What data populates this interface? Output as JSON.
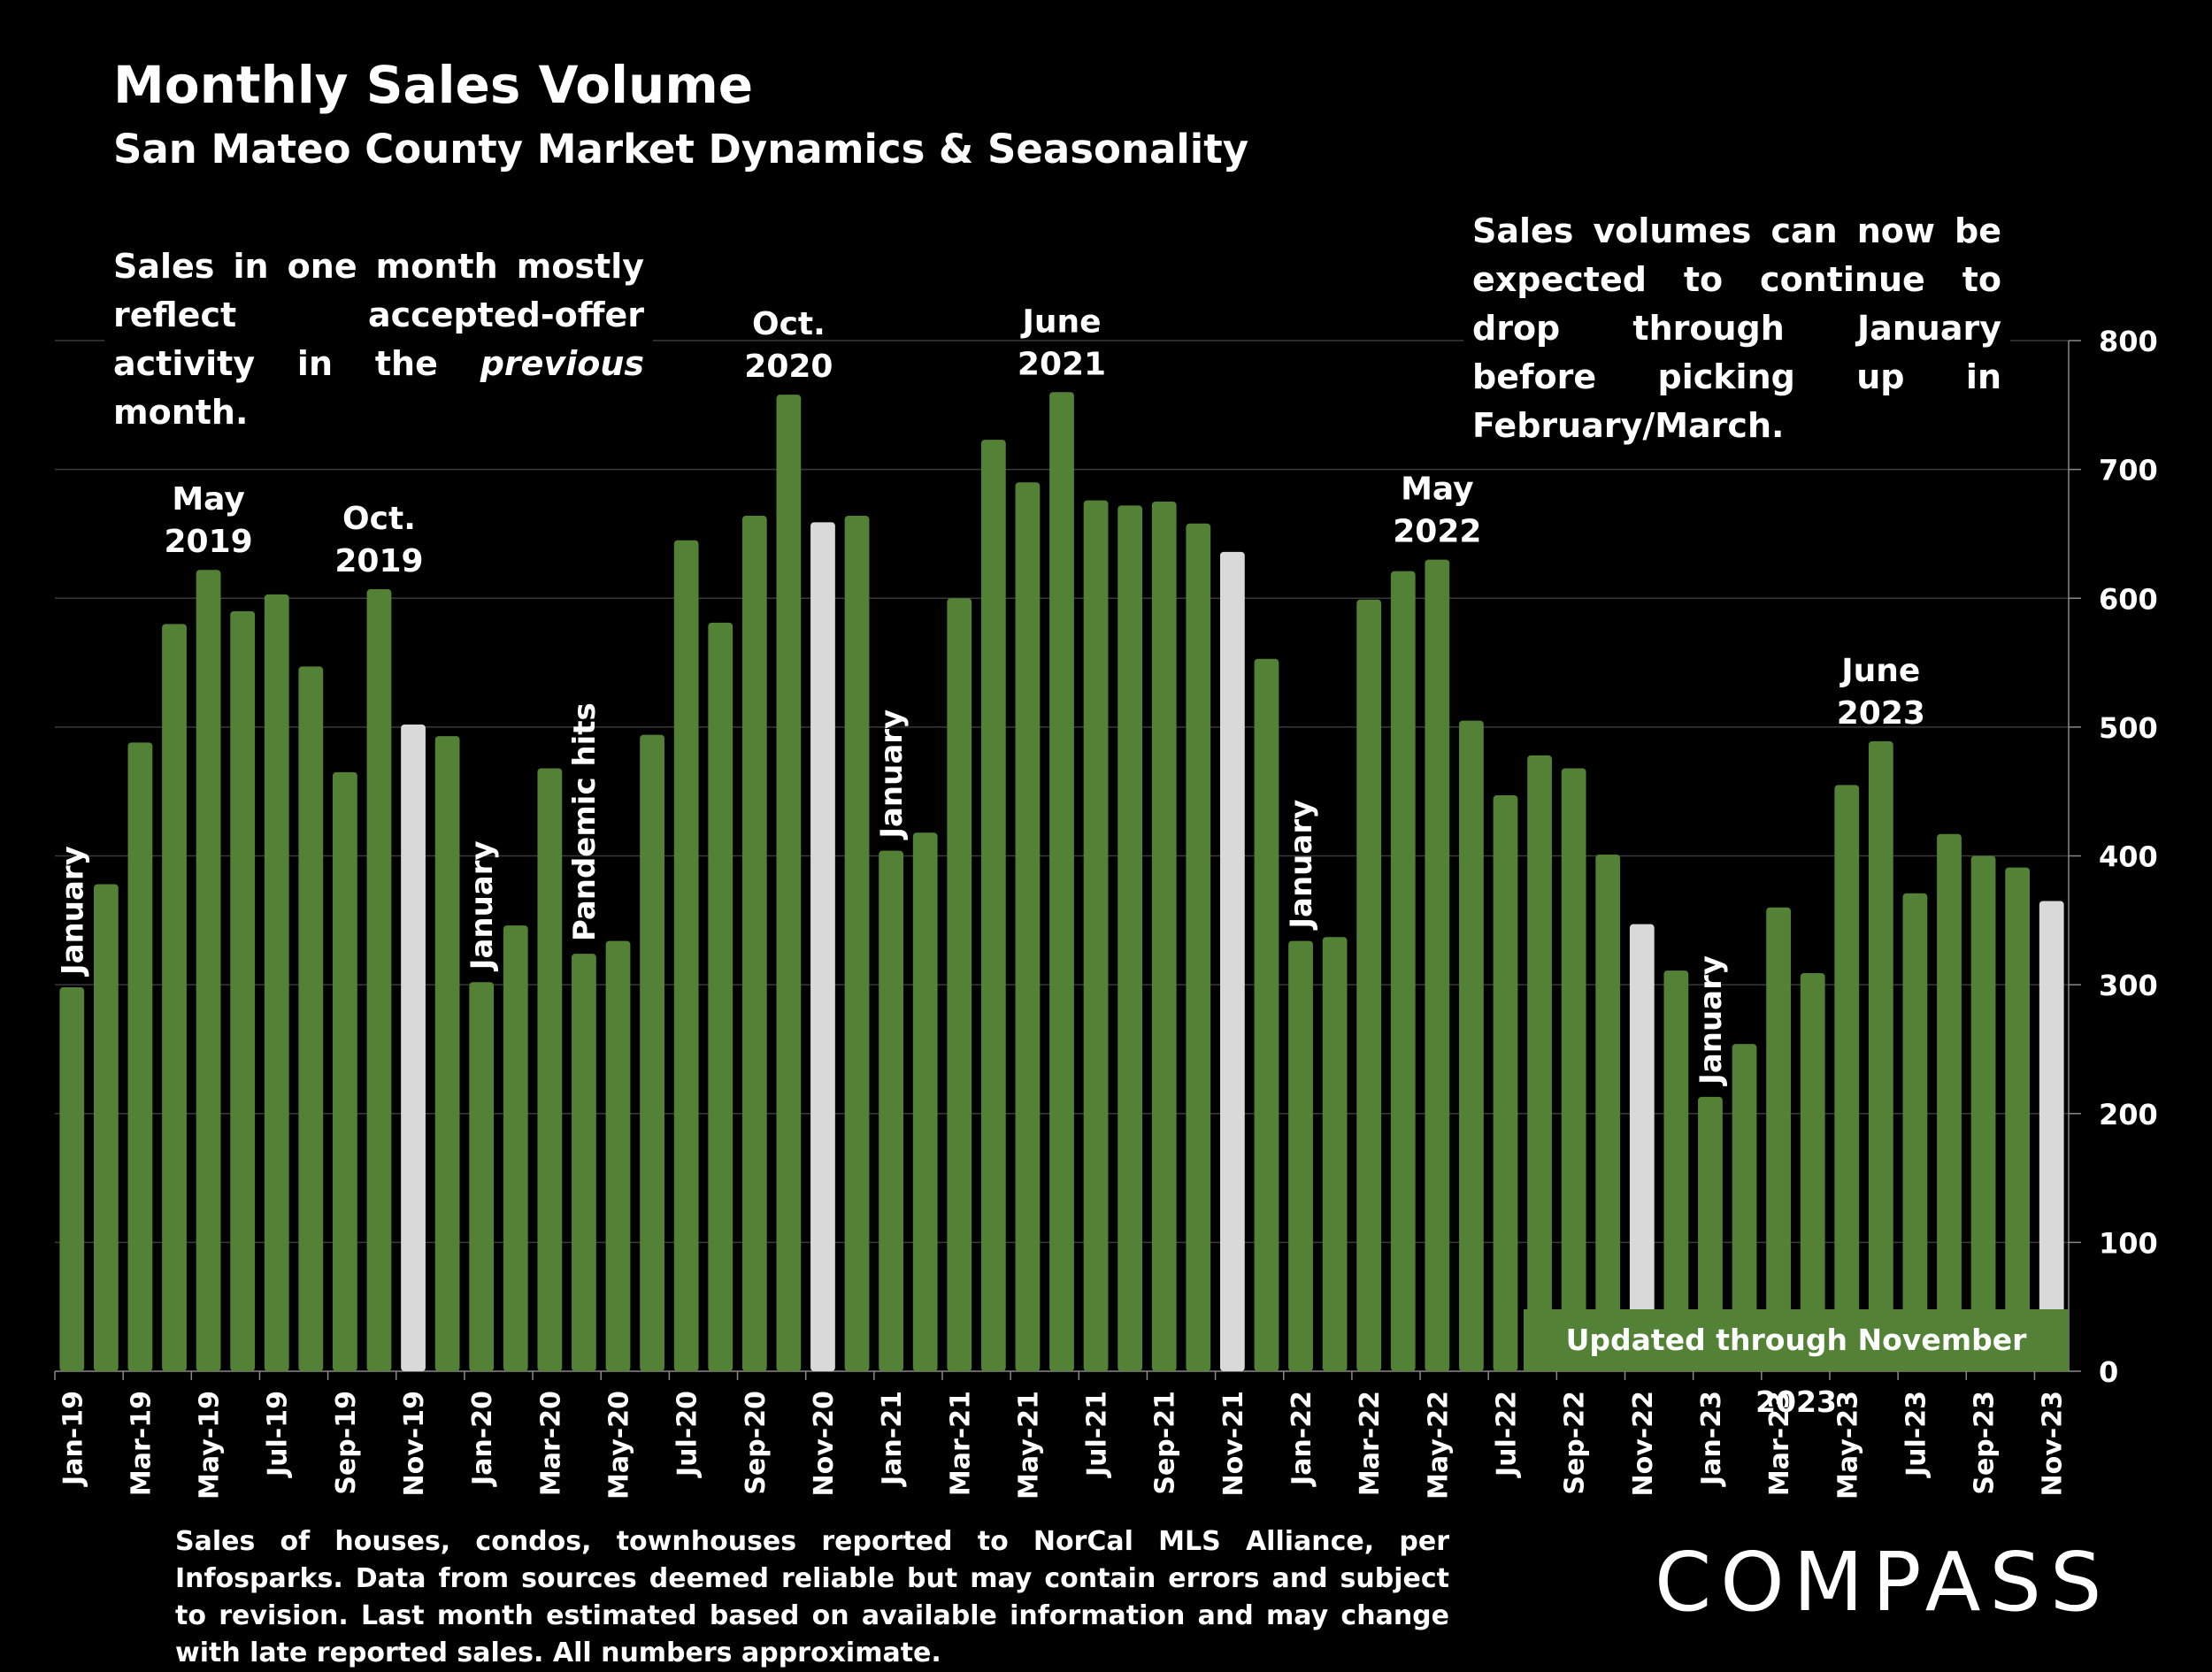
{
  "header": {
    "title": "Monthly Sales Volume",
    "subtitle": "San Mateo County Market Dynamics & Seasonality"
  },
  "notes": {
    "left_before": "Sales in one month mostly reflect accepted-offer activity in the ",
    "left_emphasis": "previous",
    "left_after": " month.",
    "right": "Sales volumes can now be expected to continue to drop through January before picking up in February/March."
  },
  "updated_badge": "Updated through November 2023",
  "footer": "Sales of houses, condos, townhouses reported to NorCal MLS Alliance, per Infosparks. Data from sources deemed reliable but may contain errors and subject to revision. Last month estimated based on available information and may change with late reported sales. All numbers approximate.",
  "brand": "COMPASS",
  "colors": {
    "bar": "#538135",
    "highlight": "#d9d9d9",
    "background": "#000000",
    "text": "#ffffff",
    "grid": "#3a3a3a"
  },
  "chart_data": {
    "type": "bar",
    "title": "Monthly Sales Volume",
    "subtitle": "San Mateo County Market Dynamics & Seasonality",
    "ylim": [
      0,
      800
    ],
    "yticks": [
      0,
      100,
      200,
      300,
      400,
      500,
      600,
      700,
      800
    ],
    "y_axis_side": "right",
    "grid": true,
    "categories": [
      "Jan-19",
      "Feb-19",
      "Mar-19",
      "Apr-19",
      "May-19",
      "Jun-19",
      "Jul-19",
      "Aug-19",
      "Sep-19",
      "Oct-19",
      "Nov-19",
      "Dec-19",
      "Jan-20",
      "Feb-20",
      "Mar-20",
      "Apr-20",
      "May-20",
      "Jun-20",
      "Jul-20",
      "Aug-20",
      "Sep-20",
      "Oct-20",
      "Nov-20",
      "Dec-20",
      "Jan-21",
      "Feb-21",
      "Mar-21",
      "Apr-21",
      "May-21",
      "Jun-21",
      "Jul-21",
      "Aug-21",
      "Sep-21",
      "Oct-21",
      "Nov-21",
      "Dec-21",
      "Jan-22",
      "Feb-22",
      "Mar-22",
      "Apr-22",
      "May-22",
      "Jun-22",
      "Jul-22",
      "Aug-22",
      "Sep-22",
      "Oct-22",
      "Nov-22",
      "Dec-22",
      "Jan-23",
      "Feb-23",
      "Mar-23",
      "Apr-23",
      "May-23",
      "Jun-23",
      "Jul-23",
      "Aug-23",
      "Sep-23",
      "Oct-23",
      "Nov-23"
    ],
    "values": [
      298,
      378,
      488,
      580,
      622,
      590,
      603,
      547,
      465,
      607,
      502,
      493,
      302,
      346,
      468,
      324,
      334,
      494,
      645,
      581,
      664,
      758,
      659,
      664,
      404,
      418,
      600,
      723,
      690,
      760,
      676,
      672,
      675,
      658,
      636,
      553,
      334,
      337,
      599,
      621,
      630,
      505,
      447,
      478,
      468,
      401,
      347,
      311,
      213,
      254,
      360,
      309,
      455,
      489,
      371,
      417,
      400,
      391,
      365
    ],
    "highlighted": [
      "Nov-19",
      "Nov-20",
      "Nov-21",
      "Nov-22",
      "Nov-23"
    ],
    "x_tick_labels": [
      "Jan-19",
      "Mar-19",
      "May-19",
      "Jul-19",
      "Sep-19",
      "Nov-19",
      "Jan-20",
      "Mar-20",
      "May-20",
      "Jul-20",
      "Sep-20",
      "Nov-20",
      "Jan-21",
      "Mar-21",
      "May-21",
      "Jul-21",
      "Sep-21",
      "Nov-21",
      "Jan-22",
      "Mar-22",
      "May-22",
      "Jul-22",
      "Sep-22",
      "Nov-22",
      "Jan-23",
      "Mar-23",
      "May-23",
      "Jul-23",
      "Sep-23",
      "Nov-23"
    ],
    "annotations": [
      {
        "category": "Jan-19",
        "text": "January",
        "orientation": "vertical"
      },
      {
        "category": "May-19",
        "lines": [
          "May",
          "2019"
        ],
        "orientation": "horizontal"
      },
      {
        "category": "Oct-19",
        "lines": [
          "Oct.",
          "2019"
        ],
        "orientation": "horizontal"
      },
      {
        "category": "Jan-20",
        "text": "January",
        "orientation": "vertical"
      },
      {
        "category": "Apr-20",
        "text": "Pandemic hits",
        "orientation": "vertical"
      },
      {
        "category": "Oct-20",
        "lines": [
          "Oct.",
          "2020"
        ],
        "orientation": "horizontal"
      },
      {
        "category": "Jan-21",
        "text": "January",
        "orientation": "vertical"
      },
      {
        "category": "Jun-21",
        "lines": [
          "June",
          "2021"
        ],
        "orientation": "horizontal"
      },
      {
        "category": "Jan-22",
        "text": "January",
        "orientation": "vertical"
      },
      {
        "category": "May-22",
        "lines": [
          "May",
          "2022"
        ],
        "orientation": "horizontal"
      },
      {
        "category": "Jan-23",
        "text": "January",
        "orientation": "vertical"
      },
      {
        "category": "Jun-23",
        "lines": [
          "June",
          "2023"
        ],
        "orientation": "horizontal"
      }
    ]
  }
}
